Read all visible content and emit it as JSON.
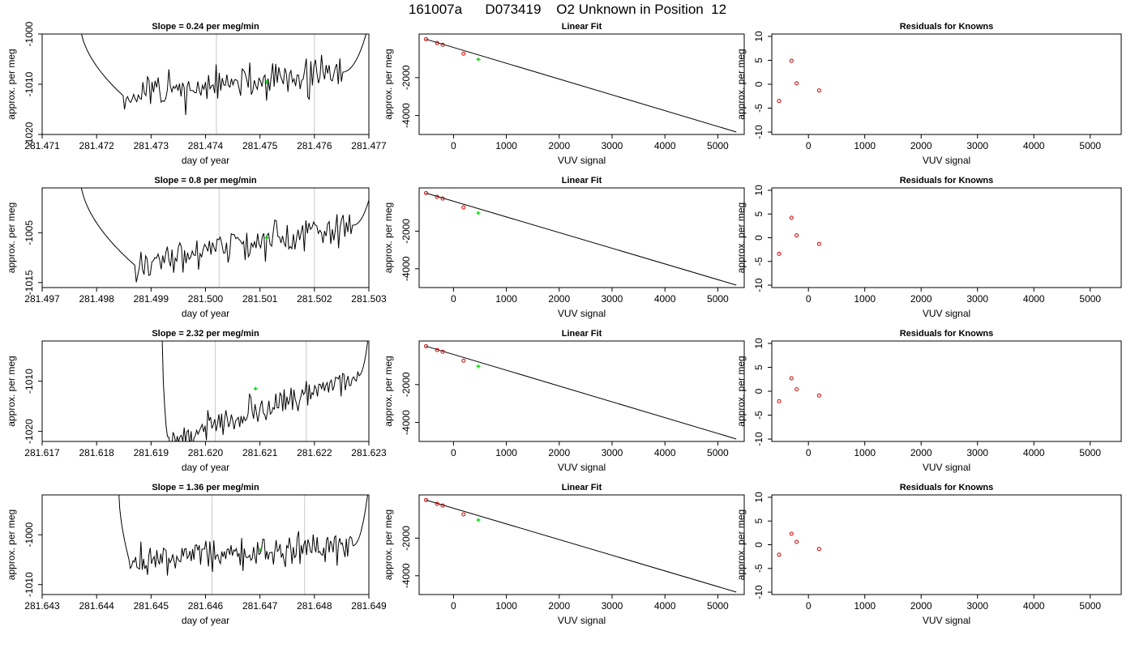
{
  "header": {
    "title": "161007a      D073419    O2 Unknown in Position  12"
  },
  "chart_data": [
    {
      "type": "line",
      "title": "Slope =  0.24  per meg/min",
      "xlabel": "day of year",
      "ylabel": "approx. per meg",
      "xlim": [
        281.471,
        281.477
      ],
      "ylim": [
        -1020,
        -1000
      ],
      "xticks": [
        "281.471",
        "281.472",
        "281.473",
        "281.474",
        "281.475",
        "281.476",
        "281.477"
      ],
      "yticks": [
        "-1000",
        "-1010",
        "-1020"
      ],
      "vlines": [
        281.4742,
        281.476
      ],
      "green_point": {
        "x": 281.47512,
        "y": -1009.5
      },
      "seed": 11,
      "trend": [
        281.4725,
        281.4765,
        -1012.4,
        -1007.6
      ],
      "noise": 2.2,
      "spikes": [
        {
          "x": 281.47178,
          "y": -998
        },
        {
          "x": 281.47242,
          "y": -1006
        },
        {
          "x": 281.4766,
          "y": -1006
        },
        {
          "x": 281.47696,
          "y": -998
        }
      ],
      "series": [
        {
          "x_start": 281.4717,
          "x_end": 281.477,
          "n": 190
        }
      ]
    },
    {
      "type": "line",
      "title": "Slope =  0.8  per meg/min",
      "xlabel": "day of year",
      "ylabel": "approx. per meg",
      "xlim": [
        281.497,
        281.503
      ],
      "ylim": [
        -1016,
        -996
      ],
      "xticks": [
        "281.497",
        "281.498",
        "281.499",
        "281.500",
        "281.501",
        "281.502",
        "281.503"
      ],
      "yticks": [
        "-1005",
        "-1015"
      ],
      "vlines": [
        281.50025,
        281.502
      ],
      "green_point": {
        "x": 281.50112,
        "y": -1006
      },
      "seed": 23,
      "trend": [
        281.4987,
        281.5027,
        -1011.5,
        -1003.5
      ],
      "noise": 2.0,
      "spikes": [
        {
          "x": 281.49785,
          "y": -994
        },
        {
          "x": 281.49855,
          "y": -1006
        },
        {
          "x": 281.50275,
          "y": -1004
        },
        {
          "x": 281.503,
          "y": -994
        }
      ],
      "series": [
        {
          "x_start": 281.4977,
          "x_end": 281.5031,
          "n": 190
        }
      ]
    },
    {
      "type": "line",
      "title": "Slope =  2.32  per meg/min",
      "xlabel": "day of year",
      "ylabel": "approx. per meg",
      "xlim": [
        281.617,
        281.623
      ],
      "ylim": [
        -1022,
        -1002
      ],
      "xticks": [
        "281.617",
        "281.618",
        "281.619",
        "281.620",
        "281.621",
        "281.622",
        "281.623"
      ],
      "yticks": [
        "-1010",
        "-1020"
      ],
      "vlines": [
        281.62018,
        281.62185
      ],
      "green_point": {
        "x": 281.62092,
        "y": -1011.5
      },
      "seed": 37,
      "trend": [
        281.6193,
        281.6228,
        -1022,
        -1009
      ],
      "noise": 1.8,
      "spikes": [
        {
          "x": 281.61785,
          "y": -1000
        },
        {
          "x": 281.61812,
          "y": -1024
        },
        {
          "x": 281.62265,
          "y": -1009
        },
        {
          "x": 281.6229,
          "y": -1000
        }
      ],
      "series": [
        {
          "x_start": 281.6192,
          "x_end": 281.623,
          "n": 150
        }
      ]
    },
    {
      "type": "line",
      "title": "Slope =  1.36  per meg/min",
      "xlabel": "day of year",
      "ylabel": "approx. per meg",
      "xlim": [
        281.643,
        281.649
      ],
      "ylim": [
        -1012,
        -992
      ],
      "xticks": [
        "281.643",
        "281.644",
        "281.645",
        "281.646",
        "281.647",
        "281.648",
        "281.649"
      ],
      "yticks": [
        "-1000",
        "-1010"
      ],
      "vlines": [
        281.64612,
        281.64782
      ],
      "green_point": {
        "x": 281.647,
        "y": -1003
      },
      "seed": 53,
      "trend": [
        281.6446,
        281.6487,
        -1005.2,
        -1002.2
      ],
      "noise": 2.0,
      "spikes": [
        {
          "x": 281.64445,
          "y": -990
        },
        {
          "x": 281.64462,
          "y": -1001
        },
        {
          "x": 281.64874,
          "y": -1003
        },
        {
          "x": 281.64895,
          "y": -990
        }
      ],
      "series": [
        {
          "x_start": 281.6444,
          "x_end": 281.649,
          "n": 190
        }
      ]
    },
    {
      "type": "scatter",
      "title": "Linear Fit",
      "xlabel": "VUV signal",
      "ylabel": "approx. per meg",
      "xlim": [
        -650,
        5500
      ],
      "ylim": [
        -5000,
        300
      ],
      "xticks": [
        "0",
        "1000",
        "2000",
        "3000",
        "4000",
        "5000"
      ],
      "yticks": [
        "-2000",
        "-4000"
      ],
      "known_points": [
        {
          "x": -520,
          "y": 25
        },
        {
          "x": -310,
          "y": -175
        },
        {
          "x": -205,
          "y": -265
        },
        {
          "x": 190,
          "y": -735
        }
      ],
      "unknown_point": {
        "x": 470,
        "y": -1035
      },
      "fit_line": {
        "x": [
          -520,
          5350
        ],
        "y": [
          25,
          -4870
        ]
      }
    },
    {
      "type": "scatter",
      "title": "Residuals for Knowns",
      "xlabel": "VUV signal",
      "ylabel": "approx. per meg",
      "xlim": [
        -650,
        5550
      ],
      "ylim": [
        -10.5,
        10.5
      ],
      "xticks": [
        "0",
        "1000",
        "2000",
        "3000",
        "4000",
        "5000"
      ],
      "yticks": [
        "10",
        "5",
        "0",
        "-5",
        "-10"
      ],
      "series": [
        {
          "x": [
            -520,
            -300,
            -210,
            190
          ],
          "y": [
            -3.5,
            4.9,
            0.2,
            -1.3
          ]
        },
        {
          "x": [
            -520,
            -300,
            -210,
            190
          ],
          "y": [
            -3.4,
            4.2,
            0.5,
            -1.3
          ]
        },
        {
          "x": [
            -520,
            -300,
            -210,
            190
          ],
          "y": [
            -2.1,
            2.7,
            0.4,
            -0.9
          ]
        },
        {
          "x": [
            -520,
            -300,
            -210,
            190
          ],
          "y": [
            -2.1,
            2.3,
            0.6,
            -0.9
          ]
        }
      ]
    }
  ]
}
